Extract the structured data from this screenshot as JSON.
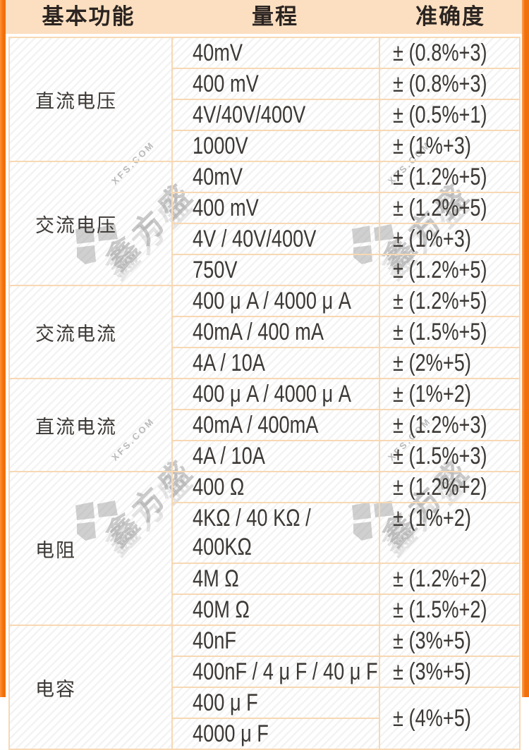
{
  "table": {
    "headers": [
      "基本功能",
      "量程",
      "准确度"
    ],
    "groups": [
      {
        "function": "直流电压",
        "rows": [
          {
            "range": "40mV",
            "accuracy": "± (0.8%+3)"
          },
          {
            "range": "400 mV",
            "accuracy": "± (0.8%+3)"
          },
          {
            "range": "4V/40V/400V",
            "accuracy": "± (0.5%+1)"
          },
          {
            "range": "1000V",
            "accuracy": "± (1%+3)"
          }
        ]
      },
      {
        "function": "交流电压",
        "rows": [
          {
            "range": "40mV",
            "accuracy": "± (1.2%+5)"
          },
          {
            "range": "400 mV",
            "accuracy": "± (1.2%+5)"
          },
          {
            "range": "4V / 40V/400V",
            "accuracy": "± (1%+3)"
          },
          {
            "range": "750V",
            "accuracy": "± (1.2%+5)"
          }
        ]
      },
      {
        "function": "交流电流",
        "rows": [
          {
            "range": "400 μ A / 4000 μ A",
            "accuracy": "± (1.2%+5)"
          },
          {
            "range": "40mA / 400 mA",
            "accuracy": "± (1.5%+5)"
          },
          {
            "range": "4A / 10A",
            "accuracy": "± (2%+5)"
          }
        ]
      },
      {
        "function": "直流电流",
        "rows": [
          {
            "range": "400 μ A / 4000 μ A",
            "accuracy": "± (1%+2)"
          },
          {
            "range": "40mA / 400mA",
            "accuracy": "± (1.2%+3)"
          },
          {
            "range": "4A / 10A",
            "accuracy": "± (1.5%+3)"
          }
        ]
      },
      {
        "function": "电阻",
        "rows": [
          {
            "range": "400 Ω",
            "accuracy": "± (1.2%+2)"
          },
          {
            "range": "4KΩ / 40 KΩ /\n400KΩ",
            "accuracy": "± (1%+2)",
            "tall": true
          },
          {
            "range": "4M Ω",
            "accuracy": "± (1.2%+2)"
          },
          {
            "range": "40M Ω",
            "accuracy": "± (1.5%+2)"
          }
        ]
      },
      {
        "function": "电容",
        "rows": [
          {
            "range": "40nF",
            "accuracy": "± (3%+5)"
          },
          {
            "range": "400nF / 4 μ F / 40 μ F",
            "accuracy": "± (3%+5)"
          },
          {
            "range": "400 μ F",
            "accuracy": "± (4%+5)",
            "accuracy_rowspan": 2
          },
          {
            "range": "4000 μ F"
          }
        ]
      }
    ]
  },
  "watermark": {
    "site_text": "XFS.COM",
    "brand_text": "鑫方盛"
  },
  "colors": {
    "frame_orange": "#f2700a",
    "header_bg": "#fbdfc0",
    "grid_line": "#f7d8b4",
    "text": "#3c3835"
  }
}
